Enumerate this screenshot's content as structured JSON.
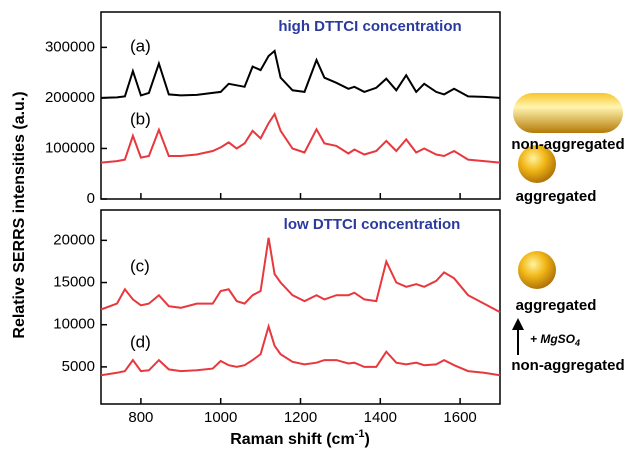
{
  "chart_data": [
    {
      "type": "line",
      "ylabel": "Relative SERRS intensities (a.u.)",
      "annotations": [
        "(a)",
        "(b)",
        "high DTTCI concentration"
      ],
      "annotation_color": "#2b3a9e",
      "xlim": [
        700,
        1700
      ],
      "xticks": [
        800,
        1000,
        1200,
        1400,
        1600
      ],
      "ylim": [
        0,
        370000
      ],
      "yticks": [
        0,
        100000,
        200000,
        300000
      ],
      "x": [
        700,
        740,
        760,
        780,
        800,
        820,
        845,
        870,
        900,
        940,
        980,
        1000,
        1020,
        1040,
        1060,
        1080,
        1100,
        1120,
        1135,
        1150,
        1180,
        1210,
        1240,
        1260,
        1290,
        1320,
        1335,
        1360,
        1390,
        1415,
        1440,
        1465,
        1490,
        1510,
        1540,
        1560,
        1585,
        1620,
        1660,
        1700
      ],
      "series": [
        {
          "name": "(a)",
          "color": "#000000",
          "values": [
            200000,
            201000,
            203000,
            253000,
            205000,
            210000,
            268000,
            207000,
            205000,
            206000,
            210000,
            212000,
            228000,
            225000,
            222000,
            262000,
            255000,
            283000,
            293000,
            240000,
            215000,
            212000,
            275000,
            240000,
            230000,
            218000,
            222000,
            212000,
            220000,
            238000,
            215000,
            245000,
            212000,
            228000,
            212000,
            207000,
            218000,
            203000,
            202000,
            200000
          ]
        },
        {
          "name": "(b)",
          "color": "#e8383d",
          "values": [
            72000,
            75000,
            78000,
            125000,
            82000,
            85000,
            137000,
            85000,
            85000,
            88000,
            95000,
            102000,
            112000,
            100000,
            110000,
            135000,
            120000,
            150000,
            168000,
            135000,
            100000,
            92000,
            138000,
            110000,
            105000,
            90000,
            98000,
            88000,
            95000,
            115000,
            95000,
            118000,
            92000,
            100000,
            88000,
            85000,
            95000,
            78000,
            75000,
            72000
          ]
        }
      ]
    },
    {
      "type": "line",
      "xlabel": {
        "text": "Raman shift (cm",
        "sup": "-1",
        "after": ")"
      },
      "annotations": [
        "(c)",
        "(d)",
        "low DTTCI concentration"
      ],
      "annotation_color": "#2b3a9e",
      "xlim": [
        700,
        1700
      ],
      "xticks": [
        800,
        1000,
        1200,
        1400,
        1600
      ],
      "ylim": [
        600,
        23600
      ],
      "yticks": [
        5000,
        10000,
        15000,
        20000
      ],
      "x": [
        700,
        740,
        760,
        780,
        800,
        820,
        845,
        870,
        900,
        940,
        980,
        1000,
        1020,
        1040,
        1060,
        1080,
        1100,
        1120,
        1135,
        1150,
        1180,
        1210,
        1240,
        1260,
        1290,
        1320,
        1335,
        1360,
        1390,
        1415,
        1440,
        1465,
        1490,
        1510,
        1540,
        1560,
        1585,
        1620,
        1660,
        1700
      ],
      "series": [
        {
          "name": "(c)",
          "color": "#e8383d",
          "values": [
            11800,
            12500,
            14200,
            13000,
            12300,
            12500,
            13500,
            12200,
            12000,
            12500,
            12500,
            14000,
            14200,
            12800,
            12500,
            13500,
            14000,
            20300,
            16000,
            15000,
            13500,
            12800,
            13500,
            13000,
            13500,
            13500,
            13800,
            13000,
            12800,
            17500,
            15000,
            14500,
            14800,
            14500,
            15200,
            16200,
            15500,
            13500,
            12500,
            11500
          ]
        },
        {
          "name": "(d)",
          "color": "#e8383d",
          "values": [
            4000,
            4300,
            4500,
            5800,
            4500,
            4600,
            5800,
            4700,
            4500,
            4600,
            4800,
            5700,
            5200,
            5000,
            5200,
            5800,
            6500,
            9800,
            7500,
            6500,
            5600,
            5300,
            5500,
            5800,
            5800,
            5400,
            5500,
            5000,
            5000,
            6800,
            5500,
            5300,
            5500,
            5200,
            5300,
            5800,
            5200,
            4500,
            4300,
            4000
          ]
        }
      ]
    }
  ],
  "side": {
    "top_label": "non-aggregated",
    "mid_label": "aggregated",
    "low_label": "aggregated",
    "reagent": {
      "text": "+ MgSO",
      "sub": "4"
    },
    "bottom_label": "non-aggregated"
  }
}
